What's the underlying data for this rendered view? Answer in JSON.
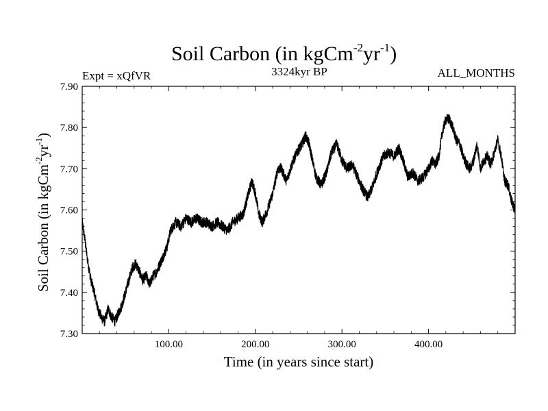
{
  "chart_data": {
    "type": "line",
    "title_main": "Soil Carbon (in kgCm",
    "title_sup1": "-2",
    "title_mid": "yr",
    "title_sup2": "-1",
    "title_end": ")",
    "subtitle_left": "Expt = xQfVR",
    "subtitle_center": "3324kyr BP",
    "subtitle_right": "ALL_MONTHS",
    "xlabel": "Time (in years since start)",
    "ylabel_main": "Soil Carbon (in kgCm",
    "ylabel_sup1": "-2",
    "ylabel_mid": "yr",
    "ylabel_sup2": "-1",
    "ylabel_end": ")",
    "xlim": [
      0,
      500
    ],
    "ylim": [
      7.3,
      7.9
    ],
    "x_ticks": [
      100,
      200,
      300,
      400
    ],
    "x_tick_labels": [
      "100.00",
      "200.00",
      "300.00",
      "400.00"
    ],
    "y_ticks": [
      7.3,
      7.4,
      7.5,
      7.6,
      7.7,
      7.8,
      7.9
    ],
    "y_tick_labels": [
      "7.30",
      "7.40",
      "7.50",
      "7.60",
      "7.70",
      "7.80",
      "7.90"
    ],
    "noise_amplitude": 0.013,
    "series": [
      {
        "name": "Soil Carbon",
        "color": "#000000",
        "x": [
          0,
          3,
          6,
          10,
          14,
          18,
          22,
          26,
          30,
          34,
          38,
          42,
          46,
          50,
          54,
          58,
          62,
          66,
          70,
          74,
          78,
          82,
          86,
          90,
          94,
          98,
          102,
          108,
          114,
          120,
          126,
          132,
          138,
          144,
          150,
          156,
          162,
          168,
          174,
          180,
          186,
          192,
          196,
          200,
          204,
          208,
          214,
          220,
          226,
          230,
          236,
          242,
          248,
          254,
          258,
          262,
          266,
          270,
          276,
          282,
          288,
          294,
          300,
          306,
          312,
          318,
          324,
          330,
          336,
          342,
          348,
          354,
          360,
          366,
          372,
          376,
          382,
          388,
          394,
          400,
          404,
          408,
          412,
          416,
          420,
          424,
          428,
          432,
          436,
          440,
          444,
          448,
          452,
          456,
          460,
          464,
          468,
          472,
          476,
          480,
          484,
          488,
          492,
          496,
          500
        ],
        "y": [
          7.57,
          7.53,
          7.48,
          7.43,
          7.4,
          7.36,
          7.34,
          7.33,
          7.36,
          7.34,
          7.33,
          7.35,
          7.37,
          7.4,
          7.43,
          7.46,
          7.47,
          7.45,
          7.43,
          7.44,
          7.42,
          7.44,
          7.45,
          7.47,
          7.49,
          7.51,
          7.55,
          7.57,
          7.56,
          7.58,
          7.57,
          7.58,
          7.57,
          7.57,
          7.56,
          7.57,
          7.56,
          7.55,
          7.57,
          7.58,
          7.59,
          7.64,
          7.67,
          7.64,
          7.59,
          7.57,
          7.6,
          7.64,
          7.7,
          7.7,
          7.67,
          7.71,
          7.74,
          7.76,
          7.78,
          7.76,
          7.72,
          7.68,
          7.66,
          7.69,
          7.74,
          7.76,
          7.72,
          7.7,
          7.71,
          7.68,
          7.65,
          7.63,
          7.66,
          7.7,
          7.73,
          7.74,
          7.73,
          7.75,
          7.71,
          7.68,
          7.69,
          7.67,
          7.68,
          7.7,
          7.72,
          7.71,
          7.73,
          7.79,
          7.82,
          7.82,
          7.8,
          7.77,
          7.76,
          7.73,
          7.71,
          7.7,
          7.72,
          7.76,
          7.7,
          7.72,
          7.73,
          7.71,
          7.74,
          7.77,
          7.73,
          7.67,
          7.66,
          7.62,
          7.6
        ]
      }
    ]
  }
}
